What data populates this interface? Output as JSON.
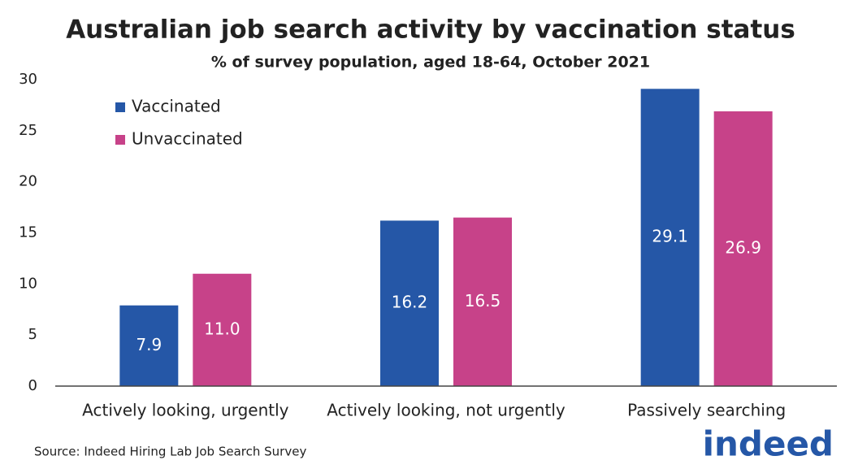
{
  "chart_data": {
    "type": "bar",
    "title": "Australian job search activity by vaccination status",
    "subtitle": "% of survey population, aged 18-64, October 2021",
    "categories": [
      "Actively looking, urgently",
      "Actively looking, not urgently",
      "Passively searching"
    ],
    "series": [
      {
        "name": "Vaccinated",
        "color": "#2557a7",
        "values": [
          7.9,
          16.2,
          29.1
        ],
        "value_labels": [
          "7.9",
          "16.2",
          "29.1"
        ]
      },
      {
        "name": "Unvaccinated",
        "color": "#c74289",
        "values": [
          11.0,
          16.5,
          26.9
        ],
        "value_labels": [
          "11.0",
          "16.5",
          "26.9"
        ]
      }
    ],
    "ylim": [
      0,
      30
    ],
    "yticks": [
      0,
      5,
      10,
      15,
      20,
      25,
      30
    ],
    "grid": false,
    "legend": "top-left",
    "source": "Source: Indeed Hiring Lab Job Search Survey",
    "logo": "indeed"
  }
}
